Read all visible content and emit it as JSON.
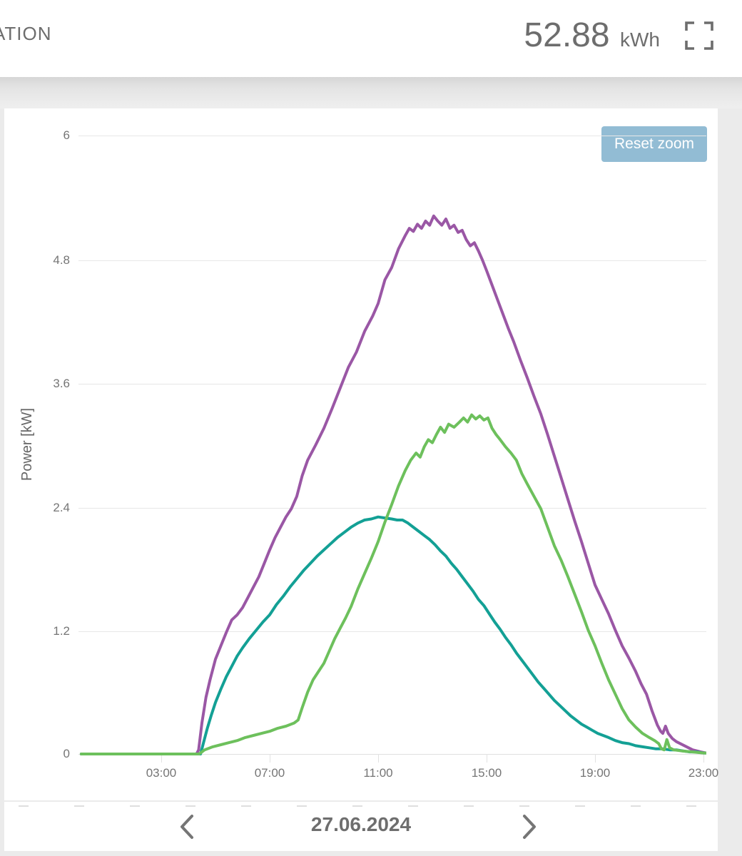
{
  "header": {
    "truncated_title": "ATION",
    "total_value": "52.88",
    "total_unit": "kWh"
  },
  "icons": {
    "fullscreen": "fullscreen-icon",
    "prev": "chevron-left-icon",
    "next": "chevron-right-icon"
  },
  "colors": {
    "accent_button": "#92bcd4",
    "series_purple": "#9a57a5",
    "series_green": "#6dc05c",
    "series_teal": "#13a095",
    "text_gray": "#757575",
    "grid": "#e7e7e7",
    "card_bg": "#ffffff",
    "page_bg": "#ebebeb"
  },
  "nav": {
    "date": "27.06.2024"
  },
  "chart_data": {
    "type": "line",
    "title": "",
    "ylabel": "Power [kW]",
    "xlabel": "",
    "ylim": [
      0,
      6
    ],
    "xlim_hours": [
      0,
      24
    ],
    "grid": true,
    "legend": "none",
    "reset_zoom_label": "Reset zoom",
    "yticks": [
      "6",
      "4.8",
      "3.6",
      "2.4",
      "1.2",
      "0"
    ],
    "xticks": [
      "03:00",
      "07:00",
      "11:00",
      "15:00",
      "19:00",
      "23:00"
    ],
    "xtick_hours": [
      3,
      7,
      11,
      15,
      19,
      23
    ],
    "series": [
      {
        "name": "purple",
        "color": "#9a57a5",
        "peak_kw": 5.2,
        "points": [
          [
            0.05,
            0
          ],
          [
            4.3,
            0
          ],
          [
            4.38,
            0.04
          ],
          [
            4.5,
            0.3
          ],
          [
            4.65,
            0.55
          ],
          [
            4.8,
            0.72
          ],
          [
            5.0,
            0.92
          ],
          [
            5.2,
            1.05
          ],
          [
            5.4,
            1.18
          ],
          [
            5.6,
            1.3
          ],
          [
            5.8,
            1.35
          ],
          [
            6.0,
            1.42
          ],
          [
            6.2,
            1.52
          ],
          [
            6.4,
            1.62
          ],
          [
            6.6,
            1.72
          ],
          [
            6.8,
            1.85
          ],
          [
            7.0,
            1.98
          ],
          [
            7.2,
            2.1
          ],
          [
            7.4,
            2.2
          ],
          [
            7.6,
            2.3
          ],
          [
            7.8,
            2.38
          ],
          [
            8.0,
            2.5
          ],
          [
            8.2,
            2.7
          ],
          [
            8.4,
            2.85
          ],
          [
            8.7,
            3.0
          ],
          [
            9.0,
            3.16
          ],
          [
            9.3,
            3.35
          ],
          [
            9.6,
            3.55
          ],
          [
            9.9,
            3.75
          ],
          [
            10.2,
            3.9
          ],
          [
            10.5,
            4.1
          ],
          [
            10.8,
            4.25
          ],
          [
            11.0,
            4.37
          ],
          [
            11.25,
            4.6
          ],
          [
            11.5,
            4.72
          ],
          [
            11.75,
            4.9
          ],
          [
            12.0,
            5.03
          ],
          [
            12.15,
            5.1
          ],
          [
            12.3,
            5.07
          ],
          [
            12.45,
            5.14
          ],
          [
            12.6,
            5.1
          ],
          [
            12.75,
            5.17
          ],
          [
            12.9,
            5.13
          ],
          [
            13.05,
            5.22
          ],
          [
            13.2,
            5.17
          ],
          [
            13.35,
            5.13
          ],
          [
            13.5,
            5.19
          ],
          [
            13.65,
            5.1
          ],
          [
            13.8,
            5.13
          ],
          [
            13.95,
            5.06
          ],
          [
            14.1,
            5.08
          ],
          [
            14.25,
            4.99
          ],
          [
            14.4,
            4.93
          ],
          [
            14.55,
            4.96
          ],
          [
            14.7,
            4.88
          ],
          [
            14.85,
            4.79
          ],
          [
            15.0,
            4.69
          ],
          [
            15.2,
            4.55
          ],
          [
            15.4,
            4.41
          ],
          [
            15.6,
            4.27
          ],
          [
            15.8,
            4.13
          ],
          [
            16.0,
            4.0
          ],
          [
            16.25,
            3.82
          ],
          [
            16.5,
            3.65
          ],
          [
            16.75,
            3.47
          ],
          [
            17.0,
            3.3
          ],
          [
            17.25,
            3.1
          ],
          [
            17.5,
            2.89
          ],
          [
            17.75,
            2.68
          ],
          [
            18.0,
            2.47
          ],
          [
            18.25,
            2.26
          ],
          [
            18.5,
            2.06
          ],
          [
            18.75,
            1.85
          ],
          [
            19.0,
            1.64
          ],
          [
            19.25,
            1.5
          ],
          [
            19.5,
            1.36
          ],
          [
            19.75,
            1.2
          ],
          [
            20.0,
            1.05
          ],
          [
            20.25,
            0.93
          ],
          [
            20.5,
            0.8
          ],
          [
            20.7,
            0.68
          ],
          [
            20.9,
            0.58
          ],
          [
            21.1,
            0.42
          ],
          [
            21.3,
            0.28
          ],
          [
            21.42,
            0.22
          ],
          [
            21.5,
            0.2
          ],
          [
            21.6,
            0.27
          ],
          [
            21.7,
            0.2
          ],
          [
            21.85,
            0.15
          ],
          [
            22.0,
            0.12
          ],
          [
            22.3,
            0.08
          ],
          [
            22.6,
            0.04
          ],
          [
            22.9,
            0.02
          ],
          [
            23.1,
            0.01
          ]
        ]
      },
      {
        "name": "teal",
        "color": "#13a095",
        "peak_kw": 2.3,
        "points": [
          [
            0.05,
            0
          ],
          [
            4.45,
            0
          ],
          [
            4.55,
            0.1
          ],
          [
            4.7,
            0.25
          ],
          [
            4.85,
            0.38
          ],
          [
            5.0,
            0.5
          ],
          [
            5.2,
            0.63
          ],
          [
            5.4,
            0.75
          ],
          [
            5.6,
            0.85
          ],
          [
            5.8,
            0.95
          ],
          [
            6.0,
            1.03
          ],
          [
            6.25,
            1.12
          ],
          [
            6.5,
            1.2
          ],
          [
            6.75,
            1.28
          ],
          [
            7.0,
            1.35
          ],
          [
            7.25,
            1.45
          ],
          [
            7.5,
            1.53
          ],
          [
            7.75,
            1.62
          ],
          [
            8.0,
            1.7
          ],
          [
            8.25,
            1.78
          ],
          [
            8.5,
            1.85
          ],
          [
            8.75,
            1.92
          ],
          [
            9.0,
            1.98
          ],
          [
            9.25,
            2.04
          ],
          [
            9.5,
            2.1
          ],
          [
            9.75,
            2.15
          ],
          [
            10.0,
            2.2
          ],
          [
            10.25,
            2.24
          ],
          [
            10.5,
            2.27
          ],
          [
            10.75,
            2.28
          ],
          [
            11.0,
            2.3
          ],
          [
            11.25,
            2.29
          ],
          [
            11.5,
            2.28
          ],
          [
            11.7,
            2.27
          ],
          [
            11.9,
            2.27
          ],
          [
            12.1,
            2.24
          ],
          [
            12.3,
            2.2
          ],
          [
            12.5,
            2.16
          ],
          [
            12.7,
            2.12
          ],
          [
            12.9,
            2.08
          ],
          [
            13.1,
            2.03
          ],
          [
            13.3,
            1.97
          ],
          [
            13.5,
            1.92
          ],
          [
            13.7,
            1.85
          ],
          [
            13.9,
            1.79
          ],
          [
            14.1,
            1.72
          ],
          [
            14.3,
            1.65
          ],
          [
            14.5,
            1.58
          ],
          [
            14.7,
            1.5
          ],
          [
            14.9,
            1.44
          ],
          [
            15.1,
            1.36
          ],
          [
            15.3,
            1.28
          ],
          [
            15.5,
            1.21
          ],
          [
            15.7,
            1.13
          ],
          [
            15.9,
            1.06
          ],
          [
            16.1,
            0.98
          ],
          [
            16.3,
            0.91
          ],
          [
            16.5,
            0.84
          ],
          [
            16.7,
            0.77
          ],
          [
            16.9,
            0.7
          ],
          [
            17.1,
            0.64
          ],
          [
            17.3,
            0.58
          ],
          [
            17.5,
            0.52
          ],
          [
            17.7,
            0.47
          ],
          [
            17.9,
            0.42
          ],
          [
            18.1,
            0.37
          ],
          [
            18.3,
            0.33
          ],
          [
            18.5,
            0.29
          ],
          [
            18.7,
            0.26
          ],
          [
            18.9,
            0.23
          ],
          [
            19.1,
            0.2
          ],
          [
            19.3,
            0.18
          ],
          [
            19.5,
            0.16
          ],
          [
            19.75,
            0.13
          ],
          [
            20.0,
            0.11
          ],
          [
            20.25,
            0.1
          ],
          [
            20.5,
            0.08
          ],
          [
            20.75,
            0.07
          ],
          [
            21.0,
            0.06
          ],
          [
            21.25,
            0.05
          ],
          [
            21.5,
            0.05
          ],
          [
            21.75,
            0.04
          ],
          [
            22.0,
            0.04
          ],
          [
            22.25,
            0.03
          ],
          [
            22.5,
            0.02
          ],
          [
            22.75,
            0.02
          ],
          [
            23.0,
            0.01
          ],
          [
            23.1,
            0.01
          ]
        ]
      },
      {
        "name": "green",
        "color": "#6dc05c",
        "peak_kw": 3.3,
        "points": [
          [
            0.05,
            0
          ],
          [
            4.4,
            0
          ],
          [
            4.6,
            0.04
          ],
          [
            4.9,
            0.07
          ],
          [
            5.2,
            0.09
          ],
          [
            5.5,
            0.11
          ],
          [
            5.8,
            0.13
          ],
          [
            6.1,
            0.16
          ],
          [
            6.4,
            0.18
          ],
          [
            6.7,
            0.2
          ],
          [
            7.0,
            0.22
          ],
          [
            7.3,
            0.25
          ],
          [
            7.6,
            0.27
          ],
          [
            7.9,
            0.3
          ],
          [
            8.05,
            0.33
          ],
          [
            8.2,
            0.45
          ],
          [
            8.4,
            0.6
          ],
          [
            8.6,
            0.72
          ],
          [
            8.8,
            0.8
          ],
          [
            9.0,
            0.88
          ],
          [
            9.2,
            1.0
          ],
          [
            9.4,
            1.12
          ],
          [
            9.6,
            1.22
          ],
          [
            9.8,
            1.32
          ],
          [
            10.0,
            1.43
          ],
          [
            10.25,
            1.6
          ],
          [
            10.5,
            1.75
          ],
          [
            10.75,
            1.9
          ],
          [
            11.0,
            2.06
          ],
          [
            11.25,
            2.25
          ],
          [
            11.5,
            2.42
          ],
          [
            11.75,
            2.6
          ],
          [
            12.0,
            2.75
          ],
          [
            12.2,
            2.85
          ],
          [
            12.4,
            2.92
          ],
          [
            12.55,
            2.88
          ],
          [
            12.7,
            2.98
          ],
          [
            12.85,
            3.05
          ],
          [
            13.0,
            3.02
          ],
          [
            13.15,
            3.1
          ],
          [
            13.3,
            3.17
          ],
          [
            13.45,
            3.12
          ],
          [
            13.6,
            3.2
          ],
          [
            13.8,
            3.17
          ],
          [
            14.0,
            3.22
          ],
          [
            14.15,
            3.26
          ],
          [
            14.3,
            3.22
          ],
          [
            14.45,
            3.29
          ],
          [
            14.6,
            3.25
          ],
          [
            14.75,
            3.28
          ],
          [
            14.9,
            3.24
          ],
          [
            15.05,
            3.26
          ],
          [
            15.2,
            3.16
          ],
          [
            15.35,
            3.1
          ],
          [
            15.5,
            3.05
          ],
          [
            15.7,
            2.98
          ],
          [
            15.9,
            2.92
          ],
          [
            16.1,
            2.85
          ],
          [
            16.3,
            2.72
          ],
          [
            16.5,
            2.62
          ],
          [
            16.75,
            2.5
          ],
          [
            17.0,
            2.38
          ],
          [
            17.25,
            2.2
          ],
          [
            17.5,
            2.02
          ],
          [
            17.75,
            1.88
          ],
          [
            18.0,
            1.72
          ],
          [
            18.25,
            1.55
          ],
          [
            18.5,
            1.38
          ],
          [
            18.75,
            1.2
          ],
          [
            19.0,
            1.05
          ],
          [
            19.25,
            0.88
          ],
          [
            19.5,
            0.72
          ],
          [
            19.75,
            0.58
          ],
          [
            20.0,
            0.44
          ],
          [
            20.25,
            0.33
          ],
          [
            20.5,
            0.26
          ],
          [
            20.75,
            0.2
          ],
          [
            21.0,
            0.16
          ],
          [
            21.2,
            0.13
          ],
          [
            21.35,
            0.1
          ],
          [
            21.45,
            0.05
          ],
          [
            21.55,
            0.04
          ],
          [
            21.65,
            0.14
          ],
          [
            21.75,
            0.06
          ],
          [
            21.9,
            0.04
          ],
          [
            22.2,
            0.03
          ],
          [
            22.6,
            0.02
          ],
          [
            23.0,
            0.01
          ],
          [
            23.1,
            0.01
          ]
        ]
      }
    ]
  }
}
